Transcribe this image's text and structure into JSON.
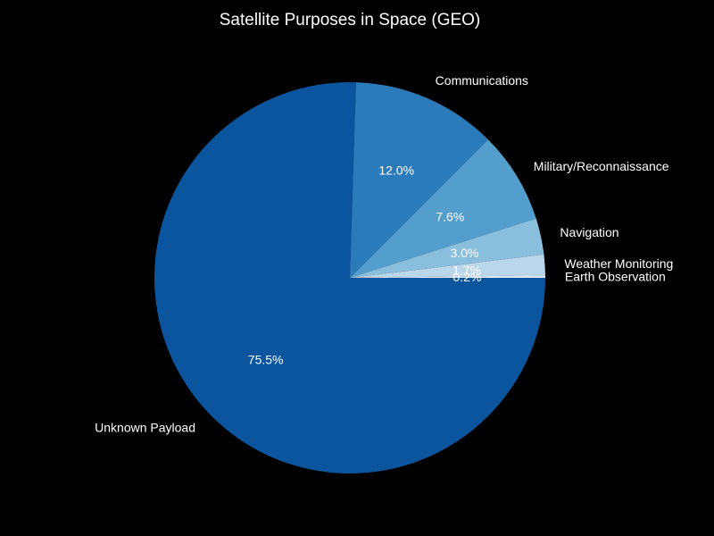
{
  "chart_data": {
    "type": "pie",
    "title": "Satellite Purposes in Space (GEO)",
    "slices": [
      {
        "label": "Unknown Payload",
        "value": 75.5,
        "pct_label": "75.5%",
        "color": "#0b559f"
      },
      {
        "label": "Communications",
        "value": 12.0,
        "pct_label": "12.0%",
        "color": "#2b7bba"
      },
      {
        "label": "Military/Reconnaissance",
        "value": 7.6,
        "pct_label": "7.6%",
        "color": "#539ecd"
      },
      {
        "label": "Navigation",
        "value": 3.0,
        "pct_label": "3.0%",
        "color": "#89bedc"
      },
      {
        "label": "Weather Monitoring",
        "value": 1.7,
        "pct_label": "1.7%",
        "color": "#bad6eb"
      },
      {
        "label": "Earth Observation",
        "value": 0.2,
        "pct_label": "0.2%",
        "color": "#dbe9f6"
      }
    ],
    "start_angle": "3 o'clock",
    "direction": "clockwise"
  }
}
